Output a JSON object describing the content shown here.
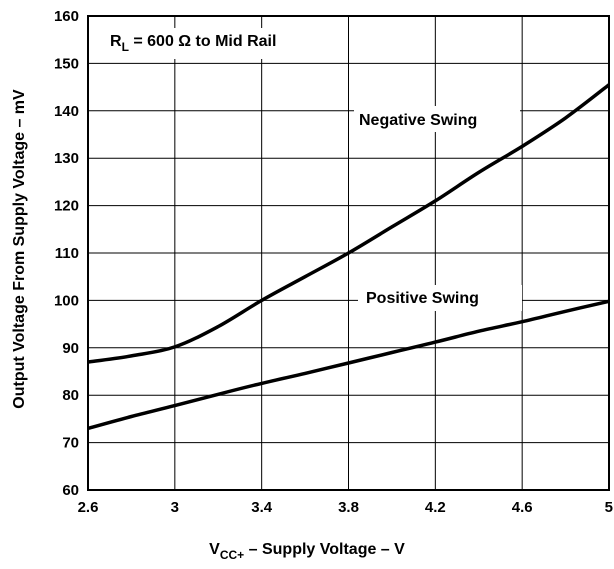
{
  "chart_data": {
    "type": "line",
    "title": "",
    "xlabel": {
      "main": "V",
      "sub": "CC+",
      "rest": " – Supply Voltage – V"
    },
    "ylabel": "Output Voltage From Supply Voltage – mV",
    "xlim": [
      2.6,
      5
    ],
    "ylim": [
      60,
      160
    ],
    "xticks": [
      2.6,
      3,
      3.4,
      3.8,
      4.2,
      4.6,
      5
    ],
    "xtick_labels": [
      "2.6",
      "3",
      "3.4",
      "3.8",
      "4.2",
      "4.6",
      "5"
    ],
    "yticks": [
      60,
      70,
      80,
      90,
      100,
      110,
      120,
      130,
      140,
      150,
      160
    ],
    "ytick_labels": [
      "60",
      "70",
      "80",
      "90",
      "100",
      "110",
      "120",
      "130",
      "140",
      "150",
      "160"
    ],
    "grid": true,
    "condition": {
      "main": "R",
      "sub": "L",
      "rest": " = 600 Ω to Mid Rail"
    },
    "series": [
      {
        "name": "Negative Swing",
        "x": [
          2.6,
          2.8,
          3.0,
          3.2,
          3.4,
          3.6,
          3.8,
          4.0,
          4.2,
          4.4,
          4.6,
          4.8,
          5.0
        ],
        "y": [
          87,
          88.3,
          90.2,
          94.5,
          100,
          105,
          110,
          115.5,
          121,
          127,
          132.5,
          138.5,
          145.5
        ]
      },
      {
        "name": "Positive Swing",
        "x": [
          2.6,
          2.8,
          3.0,
          3.2,
          3.4,
          3.6,
          3.8,
          4.0,
          4.2,
          4.4,
          4.6,
          4.8,
          5.0
        ],
        "y": [
          73,
          75.5,
          77.8,
          80.2,
          82.5,
          84.6,
          86.8,
          89,
          91.2,
          93.5,
          95.5,
          97.7,
          99.8
        ]
      }
    ]
  }
}
